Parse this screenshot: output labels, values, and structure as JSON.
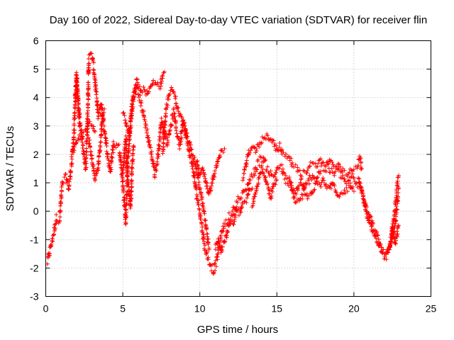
{
  "chart_data": {
    "type": "scatter",
    "title": "Day 160 of 2022, Sidereal Day-to-day VTEC variation (SDTVAR) for receiver flin",
    "xlabel": "GPS time / hours",
    "ylabel": "SDTVAR / TECUs",
    "xlim": [
      0,
      25
    ],
    "ylim": [
      -3,
      6
    ],
    "xticks": [
      "0",
      "5",
      "10",
      "15",
      "20",
      "25"
    ],
    "yticks": [
      "-3",
      "-2",
      "-1",
      "0",
      "1",
      "2",
      "3",
      "4",
      "5",
      "6"
    ],
    "grid": true,
    "marker": "+",
    "color": "#ff0000",
    "series": [
      {
        "name": "SDTVAR",
        "anchors": [
          [
            0.1,
            -1.8
          ],
          [
            0.3,
            -1.3
          ],
          [
            0.5,
            -0.8
          ],
          [
            0.7,
            -0.2
          ],
          [
            0.9,
            -0.3
          ],
          [
            1.0,
            0.5
          ],
          [
            1.1,
            1.0
          ],
          [
            1.3,
            1.2
          ],
          [
            1.5,
            0.8
          ],
          [
            1.7,
            1.8
          ],
          [
            1.8,
            2.5
          ],
          [
            1.9,
            3.6
          ],
          [
            2.0,
            4.6
          ],
          [
            2.2,
            3.2
          ],
          [
            2.4,
            2.4
          ],
          [
            2.6,
            1.5
          ],
          [
            2.7,
            3.0
          ],
          [
            2.8,
            5.4
          ],
          [
            3.0,
            5.5
          ],
          [
            3.2,
            4.6
          ],
          [
            3.4,
            3.3
          ],
          [
            3.6,
            3.8
          ],
          [
            4.0,
            2.0
          ],
          [
            4.2,
            1.4
          ],
          [
            4.4,
            2.4
          ],
          [
            4.6,
            2.3
          ],
          [
            4.8,
            2.2
          ],
          [
            5.0,
            1.0
          ],
          [
            5.1,
            0.3
          ],
          [
            5.2,
            -0.4
          ],
          [
            5.3,
            1.5
          ],
          [
            5.5,
            3.0
          ],
          [
            5.7,
            4.0
          ],
          [
            5.9,
            4.3
          ],
          [
            6.1,
            4.0
          ],
          [
            6.3,
            3.5
          ],
          [
            6.5,
            3.0
          ],
          [
            6.7,
            2.4
          ],
          [
            6.9,
            1.9
          ],
          [
            7.1,
            1.3
          ],
          [
            7.3,
            2.0
          ],
          [
            7.5,
            3.2
          ],
          [
            7.7,
            2.8
          ],
          [
            7.9,
            2.4
          ],
          [
            8.1,
            3.0
          ],
          [
            8.3,
            3.5
          ],
          [
            8.5,
            2.8
          ],
          [
            8.7,
            2.3
          ],
          [
            8.9,
            3.2
          ],
          [
            9.1,
            2.6
          ],
          [
            9.3,
            2.1
          ],
          [
            9.5,
            1.7
          ],
          [
            9.7,
            0.9
          ],
          [
            9.9,
            0.3
          ],
          [
            10.1,
            -0.4
          ],
          [
            10.3,
            -1.2
          ],
          [
            10.5,
            -1.6
          ],
          [
            10.7,
            -1.9
          ],
          [
            10.9,
            -2.1
          ],
          [
            11.1,
            -1.7
          ],
          [
            11.3,
            -1.1
          ],
          [
            11.5,
            -0.6
          ],
          [
            11.7,
            -0.4
          ],
          [
            11.9,
            -0.2
          ],
          [
            12.1,
            -0.1
          ],
          [
            12.3,
            0.2
          ],
          [
            12.5,
            0.4
          ],
          [
            12.7,
            0.5
          ],
          [
            12.9,
            0.7
          ],
          [
            13.1,
            0.9
          ],
          [
            13.3,
            1.2
          ],
          [
            13.5,
            1.3
          ],
          [
            13.7,
            1.6
          ],
          [
            13.9,
            1.8
          ],
          [
            14.1,
            1.9
          ],
          [
            14.3,
            1.6
          ],
          [
            14.5,
            1.4
          ],
          [
            14.7,
            1.2
          ],
          [
            14.9,
            1.3
          ],
          [
            15.1,
            1.6
          ],
          [
            15.3,
            1.5
          ],
          [
            15.5,
            1.2
          ],
          [
            15.7,
            1.0
          ],
          [
            15.9,
            0.9
          ],
          [
            16.1,
            0.5
          ],
          [
            16.3,
            0.3
          ],
          [
            16.5,
            0.4
          ],
          [
            16.7,
            0.6
          ],
          [
            16.9,
            0.9
          ],
          [
            17.1,
            1.1
          ],
          [
            17.3,
            1.3
          ],
          [
            17.5,
            1.1
          ],
          [
            17.7,
            1.3
          ],
          [
            17.9,
            1.5
          ],
          [
            18.1,
            1.5
          ],
          [
            18.3,
            1.5
          ],
          [
            18.5,
            1.4
          ],
          [
            18.7,
            1.3
          ],
          [
            18.9,
            1.5
          ],
          [
            19.1,
            1.3
          ],
          [
            19.3,
            1.2
          ],
          [
            19.5,
            1.0
          ],
          [
            19.7,
            1.0
          ],
          [
            19.9,
            1.2
          ],
          [
            20.1,
            1.0
          ],
          [
            20.3,
            0.9
          ],
          [
            20.5,
            0.8
          ],
          [
            20.7,
            0.4
          ],
          [
            20.9,
            0.0
          ],
          [
            21.1,
            -0.3
          ],
          [
            21.3,
            -0.6
          ],
          [
            21.5,
            -0.9
          ],
          [
            21.7,
            -1.2
          ],
          [
            21.9,
            -1.5
          ],
          [
            22.1,
            -1.6
          ],
          [
            22.3,
            -1.4
          ],
          [
            22.5,
            -1.0
          ],
          [
            22.7,
            -0.4
          ],
          [
            22.9,
            0.8
          ]
        ],
        "branches": [
          [
            [
              1.8,
              2.1
            ],
            [
              2.0,
              2.4
            ],
            [
              2.2,
              2.6
            ],
            [
              2.4,
              2.7
            ],
            [
              2.6,
              2.8
            ],
            [
              2.8,
              3.1
            ],
            [
              3.0,
              3.0
            ],
            [
              3.2,
              2.8
            ]
          ],
          [
            [
              1.9,
              4.0
            ],
            [
              2.0,
              4.9
            ],
            [
              2.1,
              3.8
            ],
            [
              2.2,
              3.0
            ]
          ],
          [
            [
              2.8,
              2.5
            ],
            [
              3.0,
              1.8
            ],
            [
              3.2,
              1.1
            ],
            [
              3.4,
              1.5
            ],
            [
              3.6,
              2.8
            ],
            [
              3.7,
              3.5
            ],
            [
              3.8,
              3.6
            ]
          ],
          [
            [
              5.0,
              3.5
            ],
            [
              5.2,
              3.2
            ],
            [
              5.4,
              2.6
            ],
            [
              5.6,
              3.8
            ],
            [
              5.9,
              4.6
            ],
            [
              6.2,
              4.2
            ],
            [
              6.4,
              4.3
            ],
            [
              6.6,
              4.1
            ],
            [
              6.8,
              4.3
            ],
            [
              7.0,
              4.6
            ],
            [
              7.2,
              4.5
            ],
            [
              7.4,
              4.4
            ],
            [
              7.6,
              4.8
            ],
            [
              7.7,
              4.9
            ]
          ],
          [
            [
              5.0,
              1.3
            ],
            [
              5.1,
              2.0
            ],
            [
              5.2,
              2.6
            ],
            [
              5.3,
              1.2
            ],
            [
              5.4,
              0.7
            ],
            [
              5.5,
              0.1
            ],
            [
              5.6,
              1.5
            ],
            [
              5.7,
              2.3
            ]
          ],
          [
            [
              7.6,
              2.0
            ],
            [
              7.8,
              3.6
            ],
            [
              8.0,
              4.1
            ],
            [
              8.2,
              4.3
            ],
            [
              8.4,
              4.0
            ],
            [
              8.6,
              3.5
            ],
            [
              8.8,
              3.3
            ],
            [
              9.0,
              3.0
            ],
            [
              9.2,
              2.6
            ],
            [
              9.4,
              2.3
            ],
            [
              9.6,
              1.9
            ],
            [
              9.8,
              1.4
            ],
            [
              10.0,
              0.8
            ],
            [
              10.2,
              0.2
            ],
            [
              10.4,
              -0.5
            ],
            [
              10.6,
              -1.3
            ]
          ],
          [
            [
              9.8,
              1.8
            ],
            [
              10.0,
              1.2
            ],
            [
              10.2,
              1.5
            ],
            [
              10.4,
              1.0
            ],
            [
              10.6,
              0.6
            ],
            [
              10.8,
              1.0
            ],
            [
              11.0,
              1.4
            ],
            [
              11.2,
              1.8
            ],
            [
              11.4,
              2.1
            ],
            [
              11.6,
              2.2
            ]
          ],
          [
            [
              11.0,
              -1.3
            ],
            [
              11.2,
              -1.0
            ],
            [
              11.4,
              -1.4
            ],
            [
              11.6,
              -1.1
            ],
            [
              11.8,
              -0.7
            ],
            [
              12.0,
              -0.3
            ],
            [
              12.2,
              -0.4
            ],
            [
              12.4,
              0.1
            ],
            [
              12.6,
              -0.1
            ],
            [
              12.8,
              0.3
            ],
            [
              13.0,
              0.4
            ],
            [
              13.2,
              0.7
            ],
            [
              13.4,
              0.8
            ]
          ],
          [
            [
              12.8,
              1.2
            ],
            [
              13.0,
              1.6
            ],
            [
              13.2,
              2.1
            ],
            [
              13.4,
              2.3
            ],
            [
              13.6,
              2.1
            ],
            [
              13.8,
              2.3
            ],
            [
              14.0,
              2.5
            ],
            [
              14.2,
              2.6
            ],
            [
              14.4,
              2.7
            ],
            [
              14.6,
              2.5
            ],
            [
              14.8,
              2.4
            ],
            [
              15.0,
              2.1
            ],
            [
              15.2,
              2.3
            ],
            [
              15.4,
              2.0
            ],
            [
              15.6,
              2.0
            ],
            [
              15.8,
              1.9
            ],
            [
              16.0,
              1.7
            ]
          ],
          [
            [
              13.4,
              0.2
            ],
            [
              13.6,
              0.6
            ],
            [
              13.8,
              1.0
            ],
            [
              14.0,
              1.5
            ],
            [
              14.2,
              1.2
            ],
            [
              14.4,
              0.9
            ],
            [
              14.6,
              0.5
            ],
            [
              14.8,
              0.9
            ],
            [
              15.0,
              1.1
            ]
          ],
          [
            [
              16.0,
              1.6
            ],
            [
              16.3,
              1.5
            ],
            [
              16.6,
              1.3
            ],
            [
              16.9,
              1.4
            ],
            [
              17.2,
              1.7
            ],
            [
              17.5,
              1.6
            ],
            [
              17.8,
              1.8
            ],
            [
              18.1,
              1.6
            ],
            [
              18.4,
              1.8
            ],
            [
              18.7,
              1.6
            ],
            [
              19.0,
              1.6
            ],
            [
              19.3,
              1.4
            ],
            [
              19.6,
              1.3
            ],
            [
              19.9,
              1.5
            ],
            [
              20.2,
              1.6
            ],
            [
              20.4,
              1.9
            ],
            [
              20.5,
              1.5
            ]
          ],
          [
            [
              15.8,
              1.2
            ],
            [
              16.0,
              0.8
            ],
            [
              16.2,
              0.6
            ],
            [
              16.4,
              0.9
            ],
            [
              16.6,
              1.1
            ],
            [
              16.8,
              0.7
            ],
            [
              17.0,
              0.5
            ],
            [
              17.2,
              0.6
            ],
            [
              17.4,
              0.8
            ],
            [
              17.6,
              1.0
            ],
            [
              17.8,
              0.9
            ],
            [
              18.0,
              1.1
            ],
            [
              18.2,
              0.9
            ],
            [
              18.4,
              0.8
            ],
            [
              18.6,
              1.0
            ],
            [
              18.8,
              0.7
            ],
            [
              19.0,
              0.5
            ],
            [
              19.2,
              0.6
            ],
            [
              19.4,
              0.7
            ],
            [
              19.6,
              0.8
            ],
            [
              19.8,
              0.9
            ],
            [
              20.0,
              0.7
            ]
          ],
          [
            [
              20.3,
              1.1
            ],
            [
              20.5,
              0.7
            ],
            [
              20.7,
              0.2
            ],
            [
              20.9,
              -0.2
            ],
            [
              21.1,
              -0.5
            ],
            [
              21.3,
              -0.8
            ],
            [
              21.5,
              -1.0
            ],
            [
              21.7,
              -1.3
            ],
            [
              21.9,
              -1.4
            ],
            [
              22.1,
              -1.5
            ],
            [
              22.3,
              -1.2
            ],
            [
              22.5,
              -0.7
            ],
            [
              22.6,
              -0.2
            ],
            [
              22.7,
              0.3
            ],
            [
              22.8,
              0.9
            ],
            [
              22.9,
              1.2
            ]
          ],
          [
            [
              22.3,
              -1.3
            ],
            [
              22.4,
              -1.0
            ],
            [
              22.5,
              -0.5
            ],
            [
              22.6,
              -0.9
            ],
            [
              22.7,
              -1.1
            ],
            [
              22.8,
              -0.8
            ],
            [
              22.9,
              -0.5
            ]
          ]
        ]
      }
    ]
  }
}
